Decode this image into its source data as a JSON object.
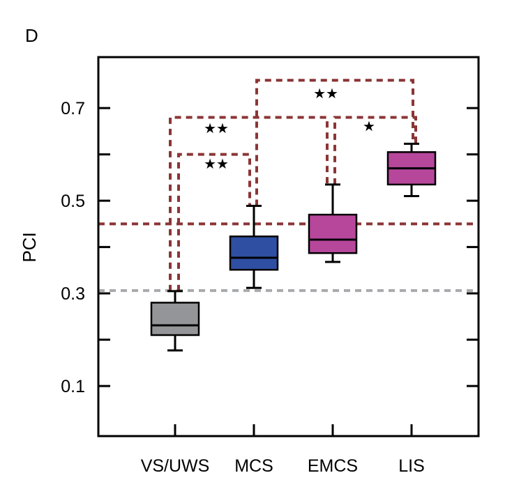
{
  "panel_label": "D",
  "chart_data": {
    "type": "box",
    "title": "",
    "xlabel": "",
    "ylabel": "PCI",
    "ylim": [
      -0.008,
      0.81
    ],
    "yticks": [
      0.1,
      0.2,
      0.3,
      0.4,
      0.5,
      0.6,
      0.7
    ],
    "ytick_labels": [
      {
        "value": 0.1,
        "label": "0.1"
      },
      {
        "value": 0.3,
        "label": "0.3"
      },
      {
        "value": 0.5,
        "label": "0.5"
      },
      {
        "value": 0.7,
        "label": "0.7"
      }
    ],
    "categories": [
      "VS/UWS",
      "MCS",
      "EMCS",
      "LIS"
    ],
    "boxes": [
      {
        "category": "VS/UWS",
        "whisker_low": 0.177,
        "q1": 0.21,
        "median": 0.231,
        "q3": 0.28,
        "whisker_high": 0.305,
        "color": "#939598"
      },
      {
        "category": "MCS",
        "whisker_low": 0.312,
        "q1": 0.351,
        "median": 0.377,
        "q3": 0.423,
        "whisker_high": 0.489,
        "color": "#2F4FA2"
      },
      {
        "category": "EMCS",
        "whisker_low": 0.368,
        "q1": 0.387,
        "median": 0.416,
        "q3": 0.47,
        "whisker_high": 0.535,
        "color": "#B6479B"
      },
      {
        "category": "LIS",
        "whisker_low": 0.51,
        "q1": 0.535,
        "median": 0.57,
        "q3": 0.605,
        "whisker_high": 0.623,
        "color": "#B6479B"
      }
    ],
    "reference_lines": [
      {
        "value": 0.306,
        "color": "#A7A9AC",
        "style": "dashed"
      },
      {
        "value": 0.45,
        "color": "#8B3536",
        "style": "dashed"
      }
    ],
    "significance": [
      {
        "from": "VS/UWS",
        "to": "MCS",
        "label": "★★",
        "level": 0.6
      },
      {
        "from": "VS/UWS",
        "to": "EMCS",
        "label": "★★",
        "level": 0.68
      },
      {
        "from": "EMCS",
        "to": "LIS",
        "label": "★",
        "level": 0.68
      },
      {
        "from": "MCS",
        "to": "LIS",
        "label": "★★",
        "level": 0.76
      }
    ],
    "grid": false,
    "bracket_color": "#8B3536"
  }
}
